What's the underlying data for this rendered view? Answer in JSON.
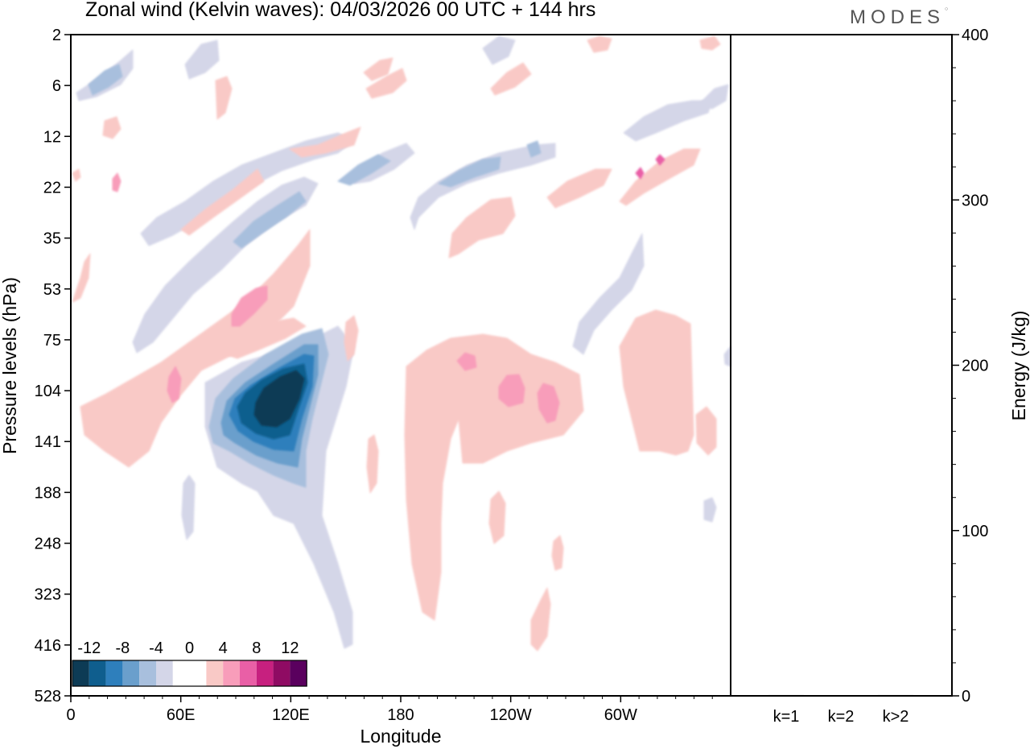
{
  "title": "Zonal wind (Kelvin waves):  04/03/2026  00 UTC  + 144 hrs",
  "logo": "MODES",
  "chart_data": [
    {
      "type": "heatmap",
      "title": "Zonal wind (Kelvin waves):  04/03/2026  00 UTC  + 144 hrs",
      "xlabel": "Longitude",
      "ylabel": "Pressure levels (hPa)",
      "x_ticks": [
        "0",
        "60E",
        "120E",
        "180",
        "120W",
        "60W"
      ],
      "x_tick_degrees": [
        0,
        60,
        120,
        180,
        240,
        300
      ],
      "xlim": [
        0,
        360
      ],
      "y_ticks": [
        "2",
        "6",
        "12",
        "22",
        "35",
        "53",
        "75",
        "104",
        "141",
        "188",
        "248",
        "323",
        "416",
        "528"
      ],
      "colorbar": {
        "labels": [
          "-12",
          "-8",
          "-4",
          "0",
          "4",
          "8",
          "12"
        ],
        "colors": [
          "#0d3b55",
          "#0f5e8e",
          "#2e7fbc",
          "#6a9fcc",
          "#a8bfdd",
          "#d4d6e8",
          "#ffffff",
          "#ffffff",
          "#f9c9c6",
          "#f89dba",
          "#e95fa6",
          "#c7207f",
          "#8f0b63",
          "#5a005e"
        ]
      },
      "features": [
        {
          "sign": "negative",
          "peak": -14,
          "lon": 118,
          "level_index": 7.6
        },
        {
          "sign": "negative",
          "peak": -6,
          "lon": 90,
          "level_index": 3.8
        },
        {
          "sign": "negative",
          "peak": -6,
          "lon": 225,
          "level_index": 2.7
        },
        {
          "sign": "positive",
          "peak": 6,
          "lon": 95,
          "level_index": 5.4
        },
        {
          "sign": "positive",
          "peak": 6,
          "lon": 240,
          "level_index": 7.5
        },
        {
          "sign": "positive",
          "peak": 6,
          "lon": 260,
          "level_index": 7.6
        },
        {
          "sign": "positive",
          "peak": 4,
          "lon": 220,
          "level_index": 9.5
        }
      ]
    },
    {
      "type": "bar",
      "ylabel": "Energy (J/kg)",
      "ylim": [
        0,
        400
      ],
      "y_ticks": [
        "0",
        "100",
        "200",
        "300",
        "400"
      ],
      "categories": [
        "k=1",
        "k=2",
        "k>2"
      ],
      "values": [
        0.5,
        0.3,
        0.5
      ]
    }
  ]
}
